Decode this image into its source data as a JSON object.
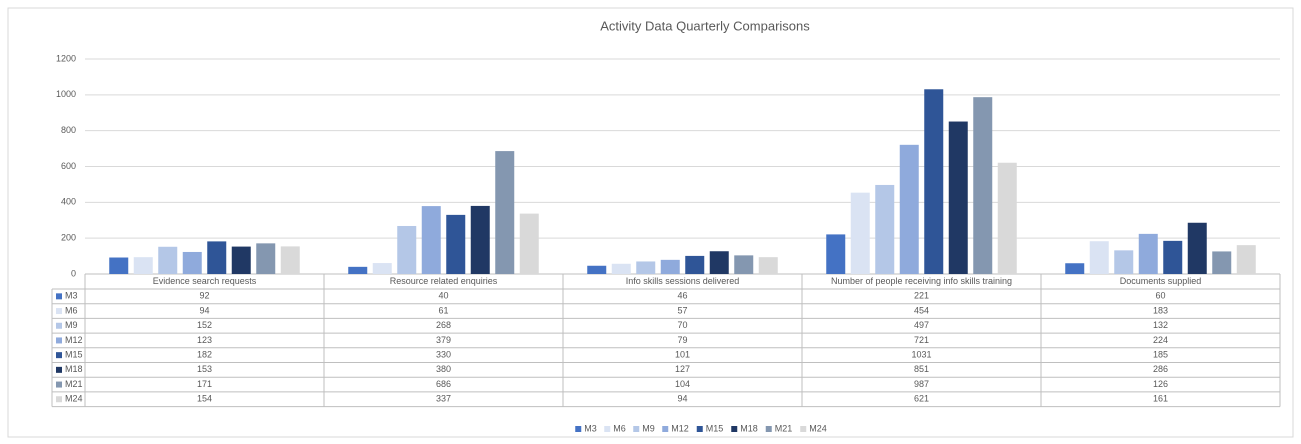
{
  "chart_data": {
    "type": "bar",
    "title": "Activity Data Quarterly Comparisons",
    "categories": [
      "Evidence search requests",
      "Resource related enquiries",
      "Info skills sessions delivered",
      "Number of people receiving info skills training",
      "Documents supplied"
    ],
    "series": [
      {
        "name": "M3",
        "color": "#4472c4",
        "values": [
          92,
          40,
          46,
          221,
          60
        ]
      },
      {
        "name": "M6",
        "color": "#dae3f3",
        "values": [
          94,
          61,
          57,
          454,
          183
        ]
      },
      {
        "name": "M9",
        "color": "#b4c7e7",
        "values": [
          152,
          268,
          70,
          497,
          132
        ]
      },
      {
        "name": "M12",
        "color": "#8faadc",
        "values": [
          123,
          379,
          79,
          721,
          224
        ]
      },
      {
        "name": "M15",
        "color": "#2f5597",
        "values": [
          182,
          330,
          101,
          1031,
          185
        ]
      },
      {
        "name": "M18",
        "color": "#203864",
        "values": [
          153,
          380,
          127,
          851,
          286
        ]
      },
      {
        "name": "M21",
        "color": "#8497b0",
        "values": [
          171,
          686,
          104,
          987,
          126
        ]
      },
      {
        "name": "M24",
        "color": "#d9d9d9",
        "values": [
          154,
          337,
          94,
          621,
          161
        ]
      }
    ],
    "ylim": [
      0,
      1200
    ],
    "yticks": [
      0,
      200,
      400,
      600,
      800,
      1000,
      1200
    ],
    "grid": true,
    "legend": "bottom"
  }
}
